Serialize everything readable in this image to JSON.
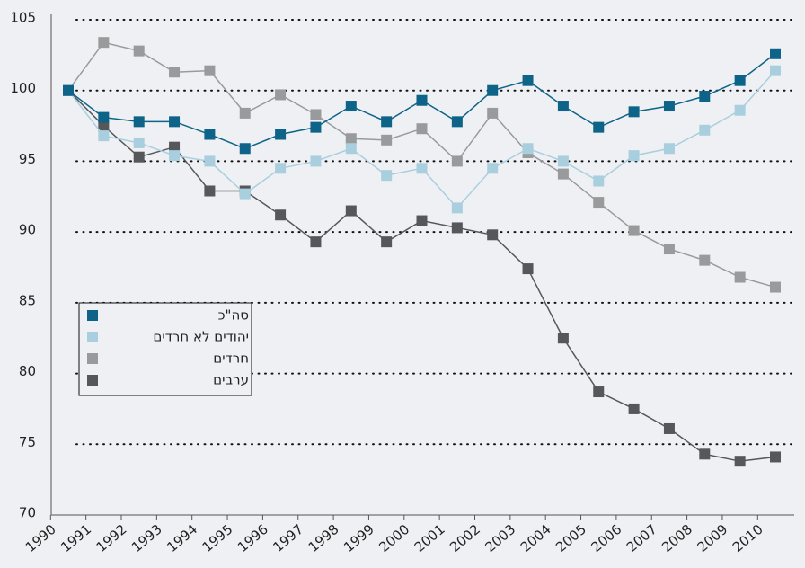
{
  "chart_data": {
    "type": "line",
    "categories": [
      "1990",
      "1991",
      "1992",
      "1993",
      "1994",
      "1995",
      "1996",
      "1997",
      "1998",
      "1999",
      "2000",
      "2001",
      "2002",
      "2003",
      "2004",
      "2005",
      "2006",
      "2007",
      "2008",
      "2009",
      "2010"
    ],
    "series": [
      {
        "name": "סה\"כ",
        "color": "#0d6488",
        "values": [
          100,
          98.1,
          97.8,
          97.8,
          96.9,
          95.9,
          96.9,
          97.4,
          98.9,
          97.8,
          99.3,
          97.8,
          100,
          100.7,
          98.9,
          97.4,
          98.5,
          98.9,
          99.6,
          100.7,
          102.6
        ]
      },
      {
        "name": "יהודים לא חרדים",
        "color": "#a9cfdf",
        "values": [
          100,
          96.8,
          96.3,
          95.4,
          95.0,
          92.7,
          94.5,
          95.0,
          95.9,
          94.0,
          94.5,
          91.7,
          94.5,
          95.9,
          95.0,
          93.6,
          95.4,
          95.9,
          97.2,
          98.6,
          101.4
        ]
      },
      {
        "name": "חרדים",
        "color": "#999a9c",
        "values": [
          100,
          103.4,
          102.8,
          101.3,
          101.4,
          98.4,
          99.7,
          98.3,
          96.6,
          96.5,
          97.3,
          95.0,
          98.4,
          95.6,
          94.1,
          92.1,
          90.1,
          88.8,
          88.0,
          86.8,
          86.1
        ]
      },
      {
        "name": "ערבים",
        "color": "#56575a",
        "values": [
          100,
          97.5,
          95.3,
          96.0,
          92.9,
          92.9,
          91.2,
          89.3,
          91.5,
          89.3,
          90.8,
          90.3,
          89.8,
          87.4,
          82.5,
          78.7,
          77.5,
          76.1,
          74.3,
          73.8,
          74.1
        ]
      }
    ],
    "ylim": [
      70,
      105
    ],
    "yticks": [
      70,
      75,
      80,
      85,
      90,
      95,
      100,
      105
    ],
    "grid": true,
    "legend": "lower-left"
  }
}
